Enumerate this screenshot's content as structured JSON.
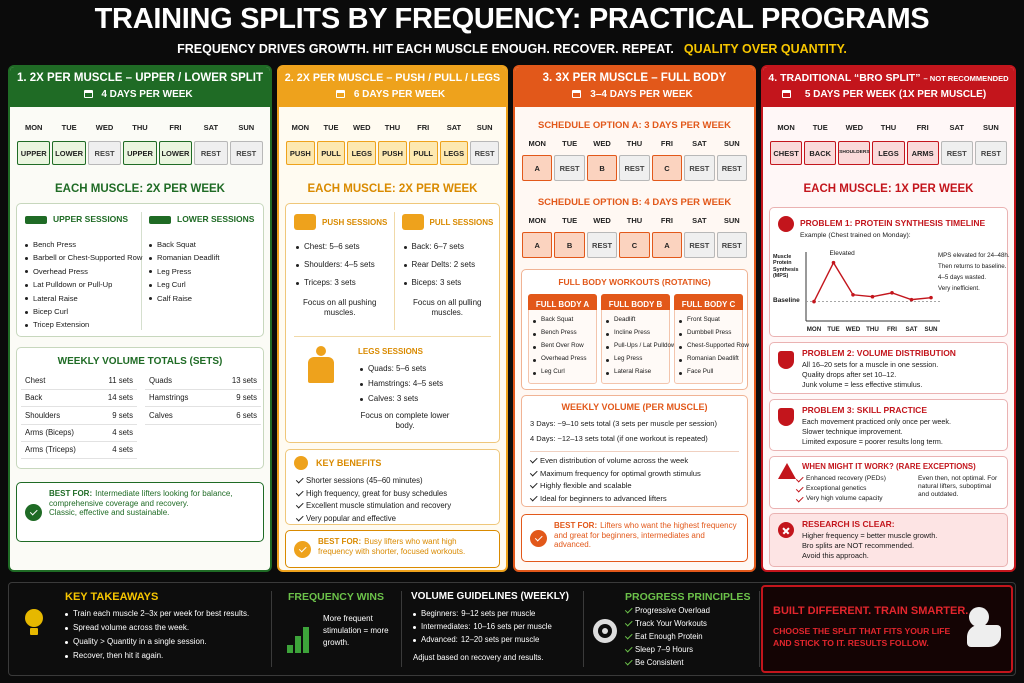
{
  "header": {
    "title": "TRAINING SPLITS BY FREQUENCY: PRACTICAL PROGRAMS",
    "subtitle": "FREQUENCY DRIVES GROWTH. HIT EACH MUSCLE ENOUGH. RECOVER. REPEAT.",
    "highlight": "QUALITY OVER QUANTITY."
  },
  "panels": [
    {
      "title": "1. 2X PER MUSCLE – UPPER / LOWER SPLIT",
      "subtitle": "4 DAYS PER WEEK",
      "color": "#1f6b25",
      "light": "#fbfbf6",
      "cell": "#eaf5df",
      "days": [
        "MON",
        "TUE",
        "WED",
        "THU",
        "FRI",
        "SAT",
        "SUN"
      ],
      "schedule": [
        "UPPER",
        "LOWER",
        "REST",
        "UPPER",
        "LOWER",
        "REST",
        "REST"
      ],
      "frequency": "EACH MUSCLE: 2X PER WEEK",
      "sessions": [
        {
          "title": "UPPER SESSIONS",
          "items": [
            "Bench Press",
            "Barbell or Chest-Supported Row",
            "Overhead Press",
            "Lat Pulldown or Pull-Up",
            "Lateral Raise",
            "Bicep Curl",
            "Tricep Extension"
          ]
        },
        {
          "title": "LOWER SESSIONS",
          "items": [
            "Back Squat",
            "Romanian Deadlift",
            "Leg Press",
            "Leg Curl",
            "Calf Raise"
          ]
        }
      ],
      "volume": {
        "title": "WEEKLY VOLUME TOTALS (SETS)",
        "left": [
          {
            "muscle": "Chest",
            "sets": "11 sets"
          },
          {
            "muscle": "Back",
            "sets": "14 sets"
          },
          {
            "muscle": "Shoulders",
            "sets": "9 sets"
          },
          {
            "muscle": "Arms (Biceps)",
            "sets": "4 sets"
          },
          {
            "muscle": "Arms (Triceps)",
            "sets": "4 sets"
          }
        ],
        "right": [
          {
            "muscle": "Quads",
            "sets": "13 sets"
          },
          {
            "muscle": "Hamstrings",
            "sets": "9 sets"
          },
          {
            "muscle": "Calves",
            "sets": "6 sets"
          }
        ]
      },
      "best_for": {
        "label": "BEST FOR:",
        "text": "Intermediate lifters looking for balance, comprehensive coverage and recovery.",
        "note": "Classic, effective and sustainable."
      }
    },
    {
      "title": "2. 2X PER MUSCLE – PUSH / PULL / LEGS",
      "subtitle": "6 DAYS PER WEEK",
      "color": "#eea21c",
      "light": "#fffbf1",
      "cell": "#fde8b0",
      "days": [
        "MON",
        "TUE",
        "WED",
        "THU",
        "FRI",
        "SAT",
        "SUN"
      ],
      "schedule": [
        "PUSH",
        "PULL",
        "LEGS",
        "PUSH",
        "PULL",
        "LEGS",
        "REST"
      ],
      "frequency": "EACH MUSCLE: 2X PER WEEK",
      "sessions": [
        {
          "title": "PUSH SESSIONS",
          "items": [
            "Chest: 5–6 sets",
            "Shoulders: 4–5 sets",
            "Triceps: 3 sets"
          ],
          "note": "Focus on all pushing muscles."
        },
        {
          "title": "PULL SESSIONS",
          "items": [
            "Back: 6–7 sets",
            "Rear Delts: 2 sets",
            "Biceps: 3 sets"
          ],
          "note": "Focus on all pulling muscles."
        },
        {
          "title": "LEGS SESSIONS",
          "items": [
            "Quads: 5–6 sets",
            "Hamstrings: 4–5 sets",
            "Calves: 3 sets"
          ],
          "note": "Focus on complete lower body."
        }
      ],
      "benefits": {
        "title": "KEY BENEFITS",
        "items": [
          "Shorter sessions (45–60 minutes)",
          "High frequency, great for busy schedules",
          "Excellent muscle stimulation and recovery",
          "Very popular and effective"
        ]
      },
      "best_for": {
        "label": "BEST FOR:",
        "text": "Busy lifters who want high frequency with shorter, focused workouts."
      }
    },
    {
      "title": "3. 3X PER MUSCLE – FULL BODY",
      "subtitle": "3–4 DAYS PER WEEK",
      "color": "#e2581a",
      "light": "#fff8f3",
      "cell": "#fbd3bf",
      "days": [
        "MON",
        "TUE",
        "WED",
        "THU",
        "FRI",
        "SAT",
        "SUN"
      ],
      "options": [
        {
          "title": "SCHEDULE OPTION A: 3 DAYS PER WEEK",
          "schedule": [
            "A",
            "REST",
            "B",
            "REST",
            "C",
            "REST",
            "REST"
          ]
        },
        {
          "title": "SCHEDULE OPTION B: 4 DAYS PER WEEK",
          "schedule": [
            "A",
            "B",
            "REST",
            "C",
            "A",
            "REST",
            "REST"
          ]
        }
      ],
      "workouts": {
        "title": "FULL BODY WORKOUTS (ROTATING)",
        "columns": [
          {
            "name": "FULL BODY A",
            "items": [
              "Back Squat",
              "Bench Press",
              "Bent Over Row",
              "Overhead Press",
              "Leg Curl"
            ]
          },
          {
            "name": "FULL BODY B",
            "items": [
              "Deadlift",
              "Incline Press",
              "Pull-Ups / Lat Pulldown",
              "Leg Press",
              "Lateral Raise"
            ]
          },
          {
            "name": "FULL BODY C",
            "items": [
              "Front Squat",
              "Dumbbell Press",
              "Chest-Supported Row",
              "Romanian Deadlift",
              "Face Pull"
            ]
          }
        ]
      },
      "volume": {
        "title": "WEEKLY VOLUME (PER MUSCLE)",
        "lines": [
          "3 Days: ~9–10 sets total (3 sets per muscle per session)",
          "4 Days: ~12–13 sets total (if one workout is repeated)"
        ],
        "items": [
          "Even distribution of volume across the week",
          "Maximum frequency for optimal growth stimulus",
          "Highly flexible and scalable",
          "Ideal for beginners to advanced lifters"
        ]
      },
      "best_for": {
        "label": "BEST FOR:",
        "text": "Lifters who want the highest frequency and great for beginners, intermediates and advanced."
      }
    },
    {
      "title": "4. TRADITIONAL “BRO SPLIT”",
      "title_note": "– NOT RECOMMENDED",
      "subtitle": "5 DAYS PER WEEK (1X PER MUSCLE)",
      "color": "#c3151c",
      "light": "#fff7f7",
      "cell": "#fadada",
      "days": [
        "MON",
        "TUE",
        "WED",
        "THU",
        "FRI",
        "SAT",
        "SUN"
      ],
      "schedule": [
        "CHEST",
        "BACK",
        "SHOULDERS",
        "LEGS",
        "ARMS",
        "REST",
        "REST"
      ],
      "frequency": "EACH MUSCLE: 1X PER WEEK",
      "timeline": {
        "title": "PROBLEM 1: PROTEIN SYNTHESIS TIMELINE",
        "example": "Example (Chest trained on Monday):",
        "y_label": "Muscle Protein Synthesis (MPS)",
        "peak_label": "Elevated",
        "baseline_label": "Baseline",
        "notes": [
          "MPS elevated for 24–48h.",
          "Then returns to baseline.",
          "4–5 days wasted.",
          "Very inefficient."
        ],
        "chart": {
          "type": "line",
          "x": [
            "MON",
            "TUE",
            "WED",
            "THU",
            "FRI",
            "SAT",
            "SUN"
          ],
          "values": [
            1,
            3,
            1.35,
            1.25,
            1.45,
            1.1,
            1.2
          ],
          "baseline": 1,
          "ylim": [
            0,
            3.5
          ]
        }
      },
      "problems": [
        {
          "title": "PROBLEM 2: VOLUME DISTRIBUTION",
          "lines": [
            "All 16–20 sets for a muscle in one session.",
            "Quality drops after set 10–12.",
            "Junk volume = less effective stimulus."
          ]
        },
        {
          "title": "PROBLEM 3: SKILL PRACTICE",
          "lines": [
            "Each movement practiced only once per week.",
            "Slower technique improvement.",
            "Limited exposure = poorer results long term."
          ]
        }
      ],
      "exceptions": {
        "title": "WHEN MIGHT IT WORK? (RARE EXCEPTIONS)",
        "items": [
          "Enhanced recovery (PEDs)",
          "Exceptional genetics",
          "Very high volume capacity"
        ],
        "note": "Even then, not optimal. For natural lifters, suboptimal and outdated."
      },
      "research": {
        "title": "RESEARCH IS CLEAR:",
        "lines": [
          "Higher frequency = better muscle growth.",
          "Bro splits are NOT recommended.",
          "Avoid this approach."
        ]
      }
    }
  ],
  "footer": {
    "takeaways": {
      "title": "KEY TAKEAWAYS",
      "items": [
        "Train each muscle 2–3x per week for best results.",
        "Spread volume across the week.",
        "Quality > Quantity in a single session.",
        "Recover, then hit it again."
      ]
    },
    "frequency": {
      "title": "FREQUENCY WINS",
      "text": "More frequent stimulation = more growth."
    },
    "volume": {
      "title": "VOLUME GUIDELINES (WEEKLY)",
      "items": [
        {
          "label": "Beginners:",
          "text": "9–12 sets per muscle"
        },
        {
          "label": "Intermediates:",
          "text": "10–16 sets per muscle"
        },
        {
          "label": "Advanced:",
          "text": "12–20 sets per muscle"
        }
      ],
      "note": "Adjust based on recovery and results."
    },
    "progress": {
      "title": "PROGRESS PRINCIPLES",
      "items": [
        "Progressive Overload",
        "Track Your Workouts",
        "Eat Enough Protein",
        "Sleep 7–9 Hours",
        "Be Consistent"
      ]
    },
    "cta": {
      "title": "BUILT DIFFERENT. TRAIN SMARTER.",
      "text": "CHOOSE THE SPLIT THAT FITS YOUR LIFE AND STICK TO IT. RESULTS FOLLOW."
    }
  }
}
